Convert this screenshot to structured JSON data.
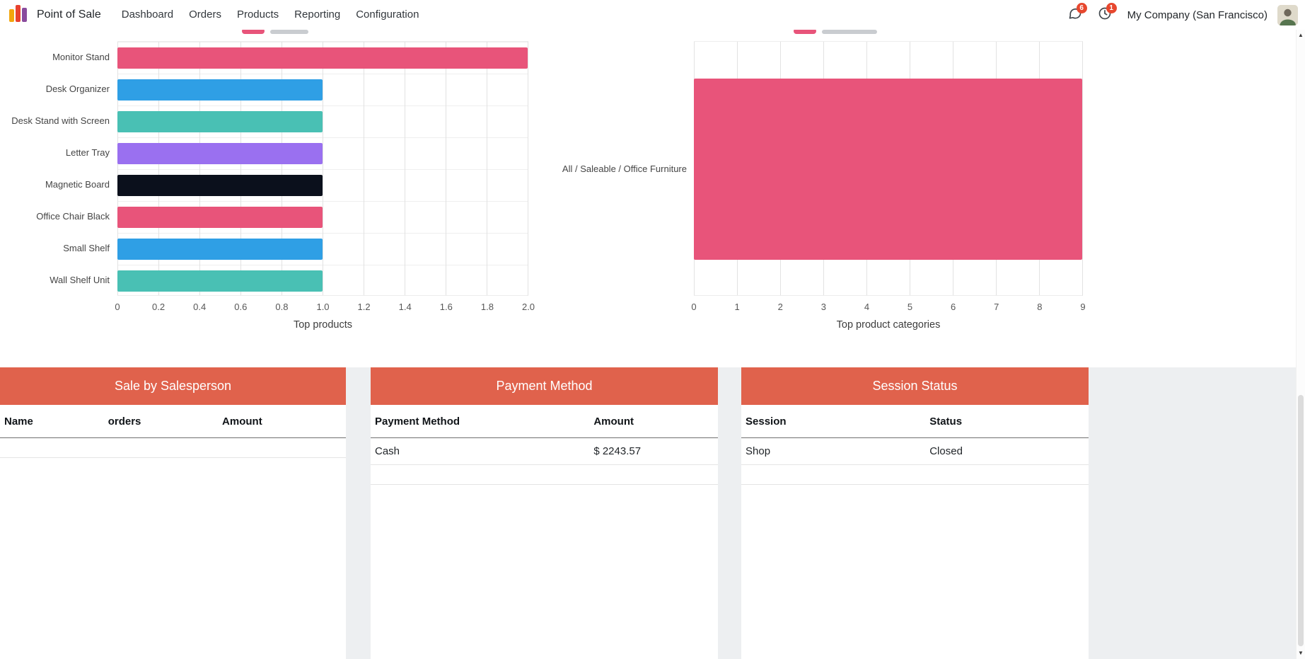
{
  "nav": {
    "app_name": "Point of Sale",
    "items": [
      {
        "label": "Dashboard"
      },
      {
        "label": "Orders"
      },
      {
        "label": "Products"
      },
      {
        "label": "Reporting"
      },
      {
        "label": "Configuration"
      }
    ],
    "messages_badge": "6",
    "activities_badge": "1",
    "company": "My Company (San Francisco)"
  },
  "colors": {
    "panel_header": "#e0624c",
    "badge": "#e7472e",
    "bar_pink": "#e8547a",
    "bar_blue": "#2f9fe5",
    "bar_teal": "#49c0b4",
    "bar_purple": "#9a70f0",
    "bar_black": "#0b101c"
  },
  "chart_data": [
    {
      "type": "bar",
      "orientation": "horizontal",
      "title": "Top products",
      "xlabel": "",
      "ylabel": "",
      "categories": [
        "Monitor Stand",
        "Desk Organizer",
        "Desk Stand with Screen",
        "Letter Tray",
        "Magnetic Board",
        "Office Chair Black",
        "Small Shelf",
        "Wall Shelf Unit"
      ],
      "values": [
        2.0,
        1.0,
        1.0,
        1.0,
        1.0,
        1.0,
        1.0,
        1.0
      ],
      "bar_colors": [
        "#e8547a",
        "#2f9fe5",
        "#49c0b4",
        "#9a70f0",
        "#0b101c",
        "#e8547a",
        "#2f9fe5",
        "#49c0b4"
      ],
      "xlim": [
        0,
        2.0
      ],
      "xticks": [
        0,
        0.2,
        0.4,
        0.6,
        0.8,
        1.0,
        1.2,
        1.4,
        1.6,
        1.8,
        2.0
      ],
      "xtick_labels": [
        "0",
        "0.2",
        "0.4",
        "0.6",
        "0.8",
        "1.0",
        "1.2",
        "1.4",
        "1.6",
        "1.8",
        "2.0"
      ],
      "grid": "vertical",
      "legend_position": "top (cut off)"
    },
    {
      "type": "bar",
      "orientation": "horizontal",
      "title": "Top product categories",
      "xlabel": "",
      "ylabel": "",
      "categories": [
        "All / Saleable / Office Furniture"
      ],
      "values": [
        9
      ],
      "bar_colors": [
        "#e8547a"
      ],
      "xlim": [
        0,
        9
      ],
      "xticks": [
        0,
        1,
        2,
        3,
        4,
        5,
        6,
        7,
        8,
        9
      ],
      "xtick_labels": [
        "0",
        "1",
        "2",
        "3",
        "4",
        "5",
        "6",
        "7",
        "8",
        "9"
      ],
      "grid": "vertical",
      "legend_position": "top (cut off)"
    }
  ],
  "panels": [
    {
      "title": "Sale by Salesperson",
      "columns": [
        "Name",
        "orders",
        "Amount"
      ],
      "rows": []
    },
    {
      "title": "Payment Method",
      "columns": [
        "Payment Method",
        "Amount"
      ],
      "rows": [
        [
          "Cash",
          "$ 2243.57"
        ]
      ]
    },
    {
      "title": "Session Status",
      "columns": [
        "Session",
        "Status"
      ],
      "rows": [
        [
          "Shop",
          "Closed"
        ]
      ]
    }
  ]
}
